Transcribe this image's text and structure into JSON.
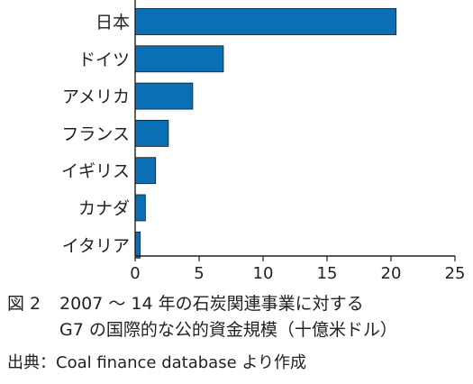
{
  "chart_data": {
    "type": "bar",
    "orientation": "horizontal",
    "categories": [
      "日本",
      "ドイツ",
      "アメリカ",
      "フランス",
      "イギリス",
      "カナダ",
      "イタリア"
    ],
    "values": [
      20.4,
      6.9,
      4.5,
      2.6,
      1.6,
      0.8,
      0.4
    ],
    "xlim": [
      0,
      25
    ],
    "xticks": [
      "0",
      "5",
      "10",
      "15",
      "20",
      "25"
    ],
    "grid": false,
    "bar_color": "#0b6fb5"
  },
  "caption": {
    "figure_label": "図 2",
    "title_line_1": "2007 ～ 14 年の石炭関連事業に対する",
    "title_line_2": "G7 の国際的な公的資金規模（十億米ドル）",
    "source": "出典：Coal finance database より作成"
  }
}
